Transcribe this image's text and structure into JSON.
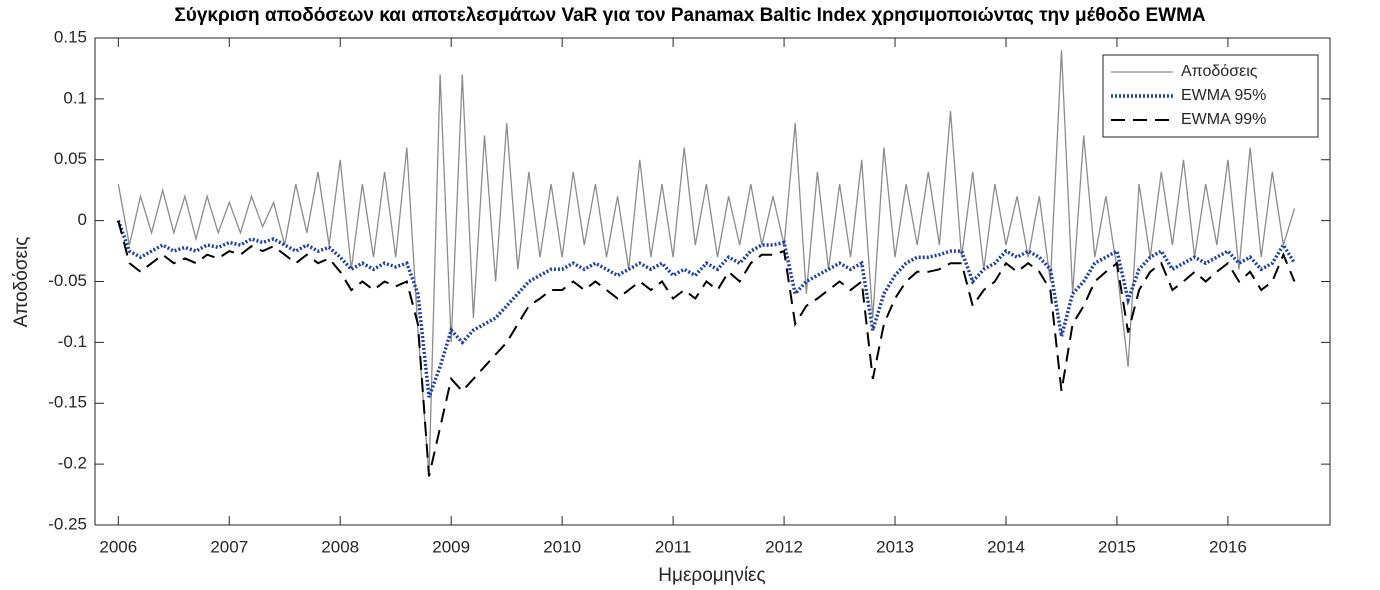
{
  "chart_data": {
    "type": "line",
    "title": "Σύγκριση αποδόσεων και αποτελεσμάτων VaR για τον Panamax Baltic Index χρησιμοποιώντας την μέθοδο EWMA",
    "xlabel": "Ημερομηνίες",
    "ylabel": "Αποδόσεις",
    "x": [
      2006,
      2006.1,
      2006.2,
      2006.3,
      2006.4,
      2006.5,
      2006.6,
      2006.7,
      2006.8,
      2006.9,
      2007,
      2007.1,
      2007.2,
      2007.3,
      2007.4,
      2007.5,
      2007.6,
      2007.7,
      2007.8,
      2007.9,
      2008,
      2008.1,
      2008.2,
      2008.3,
      2008.4,
      2008.5,
      2008.6,
      2008.7,
      2008.8,
      2008.9,
      2009,
      2009.1,
      2009.2,
      2009.3,
      2009.4,
      2009.5,
      2009.6,
      2009.7,
      2009.8,
      2009.9,
      2010,
      2010.1,
      2010.2,
      2010.3,
      2010.4,
      2010.5,
      2010.6,
      2010.7,
      2010.8,
      2010.9,
      2011,
      2011.1,
      2011.2,
      2011.3,
      2011.4,
      2011.5,
      2011.6,
      2011.7,
      2011.8,
      2011.9,
      2012,
      2012.1,
      2012.2,
      2012.3,
      2012.4,
      2012.5,
      2012.6,
      2012.7,
      2012.8,
      2012.9,
      2013,
      2013.1,
      2013.2,
      2013.3,
      2013.4,
      2013.5,
      2013.6,
      2013.7,
      2013.8,
      2013.9,
      2014,
      2014.1,
      2014.2,
      2014.3,
      2014.4,
      2014.5,
      2014.6,
      2014.7,
      2014.8,
      2014.9,
      2015,
      2015.1,
      2015.2,
      2015.3,
      2015.4,
      2015.5,
      2015.6,
      2015.7,
      2015.8,
      2015.9,
      2016,
      2016.1,
      2016.2,
      2016.3,
      2016.4,
      2016.5,
      2016.6
    ],
    "series": [
      {
        "name": "Αποδόσεις",
        "color": "#8c8c8c",
        "line_style": "solid",
        "values": [
          0.03,
          -0.02,
          0.02,
          -0.01,
          0.025,
          -0.01,
          0.02,
          -0.015,
          0.02,
          -0.01,
          0.015,
          -0.01,
          0.02,
          -0.005,
          0.015,
          -0.02,
          0.03,
          -0.01,
          0.04,
          -0.02,
          0.05,
          -0.04,
          0.03,
          -0.03,
          0.04,
          -0.03,
          0.06,
          -0.09,
          -0.21,
          0.12,
          -0.1,
          0.12,
          -0.08,
          0.07,
          -0.05,
          0.08,
          -0.04,
          0.04,
          -0.03,
          0.03,
          -0.03,
          0.04,
          -0.02,
          0.03,
          -0.03,
          0.02,
          -0.04,
          0.05,
          -0.03,
          0.03,
          -0.03,
          0.06,
          -0.02,
          0.03,
          -0.03,
          0.02,
          -0.02,
          0.03,
          -0.02,
          0.02,
          -0.02,
          0.08,
          -0.06,
          0.04,
          -0.04,
          0.03,
          -0.03,
          0.05,
          -0.08,
          0.06,
          -0.03,
          0.03,
          -0.02,
          0.04,
          -0.02,
          0.09,
          -0.03,
          0.04,
          -0.04,
          0.03,
          -0.02,
          0.02,
          -0.03,
          0.02,
          -0.05,
          0.14,
          -0.06,
          0.07,
          -0.03,
          0.02,
          -0.04,
          -0.12,
          0.03,
          -0.03,
          0.04,
          -0.02,
          0.05,
          -0.03,
          0.03,
          -0.02,
          0.05,
          -0.04,
          0.06,
          -0.03,
          0.04,
          -0.02,
          0.01
        ]
      },
      {
        "name": "EWMA 95%",
        "color": "#1f3ea8",
        "line_style": "dotted",
        "values": [
          0,
          -0.025,
          -0.03,
          -0.025,
          -0.02,
          -0.025,
          -0.022,
          -0.025,
          -0.02,
          -0.022,
          -0.018,
          -0.02,
          -0.015,
          -0.018,
          -0.015,
          -0.02,
          -0.025,
          -0.02,
          -0.025,
          -0.022,
          -0.03,
          -0.04,
          -0.035,
          -0.04,
          -0.035,
          -0.038,
          -0.035,
          -0.06,
          -0.145,
          -0.12,
          -0.09,
          -0.1,
          -0.09,
          -0.085,
          -0.08,
          -0.07,
          -0.06,
          -0.05,
          -0.045,
          -0.04,
          -0.04,
          -0.035,
          -0.04,
          -0.035,
          -0.04,
          -0.045,
          -0.04,
          -0.035,
          -0.04,
          -0.035,
          -0.045,
          -0.04,
          -0.045,
          -0.035,
          -0.04,
          -0.03,
          -0.035,
          -0.025,
          -0.02,
          -0.02,
          -0.018,
          -0.06,
          -0.05,
          -0.045,
          -0.04,
          -0.035,
          -0.04,
          -0.035,
          -0.09,
          -0.06,
          -0.045,
          -0.035,
          -0.03,
          -0.03,
          -0.028,
          -0.025,
          -0.025,
          -0.05,
          -0.04,
          -0.035,
          -0.025,
          -0.03,
          -0.025,
          -0.03,
          -0.04,
          -0.095,
          -0.06,
          -0.05,
          -0.035,
          -0.03,
          -0.025,
          -0.065,
          -0.04,
          -0.03,
          -0.025,
          -0.04,
          -0.035,
          -0.03,
          -0.035,
          -0.03,
          -0.025,
          -0.035,
          -0.03,
          -0.04,
          -0.035,
          -0.02,
          -0.035
        ]
      },
      {
        "name": "EWMA 99%",
        "color": "#000000",
        "line_style": "dashed",
        "values": [
          0,
          -0.035,
          -0.042,
          -0.035,
          -0.028,
          -0.035,
          -0.031,
          -0.035,
          -0.028,
          -0.031,
          -0.025,
          -0.028,
          -0.021,
          -0.025,
          -0.021,
          -0.028,
          -0.035,
          -0.028,
          -0.035,
          -0.031,
          -0.042,
          -0.057,
          -0.05,
          -0.057,
          -0.05,
          -0.054,
          -0.05,
          -0.085,
          -0.21,
          -0.17,
          -0.13,
          -0.14,
          -0.13,
          -0.12,
          -0.11,
          -0.1,
          -0.085,
          -0.07,
          -0.064,
          -0.057,
          -0.057,
          -0.05,
          -0.057,
          -0.05,
          -0.057,
          -0.064,
          -0.057,
          -0.05,
          -0.057,
          -0.05,
          -0.064,
          -0.057,
          -0.064,
          -0.05,
          -0.057,
          -0.042,
          -0.05,
          -0.035,
          -0.028,
          -0.028,
          -0.025,
          -0.085,
          -0.07,
          -0.064,
          -0.057,
          -0.05,
          -0.057,
          -0.05,
          -0.13,
          -0.085,
          -0.064,
          -0.05,
          -0.042,
          -0.042,
          -0.04,
          -0.035,
          -0.035,
          -0.07,
          -0.057,
          -0.05,
          -0.035,
          -0.042,
          -0.035,
          -0.042,
          -0.057,
          -0.14,
          -0.085,
          -0.07,
          -0.05,
          -0.042,
          -0.035,
          -0.092,
          -0.057,
          -0.042,
          -0.035,
          -0.057,
          -0.05,
          -0.042,
          -0.05,
          -0.042,
          -0.035,
          -0.05,
          -0.042,
          -0.057,
          -0.05,
          -0.028,
          -0.05
        ]
      }
    ],
    "xlim": [
      2005.79,
      2016.92
    ],
    "xticks": [
      2006,
      2007,
      2008,
      2009,
      2010,
      2011,
      2012,
      2013,
      2014,
      2015,
      2016
    ],
    "ylim": [
      -0.25,
      0.15
    ],
    "yticks": [
      0.15,
      0.1,
      0.05,
      0,
      -0.05,
      -0.1,
      -0.15,
      -0.2,
      -0.25
    ],
    "grid": false,
    "legend": "upper right"
  }
}
